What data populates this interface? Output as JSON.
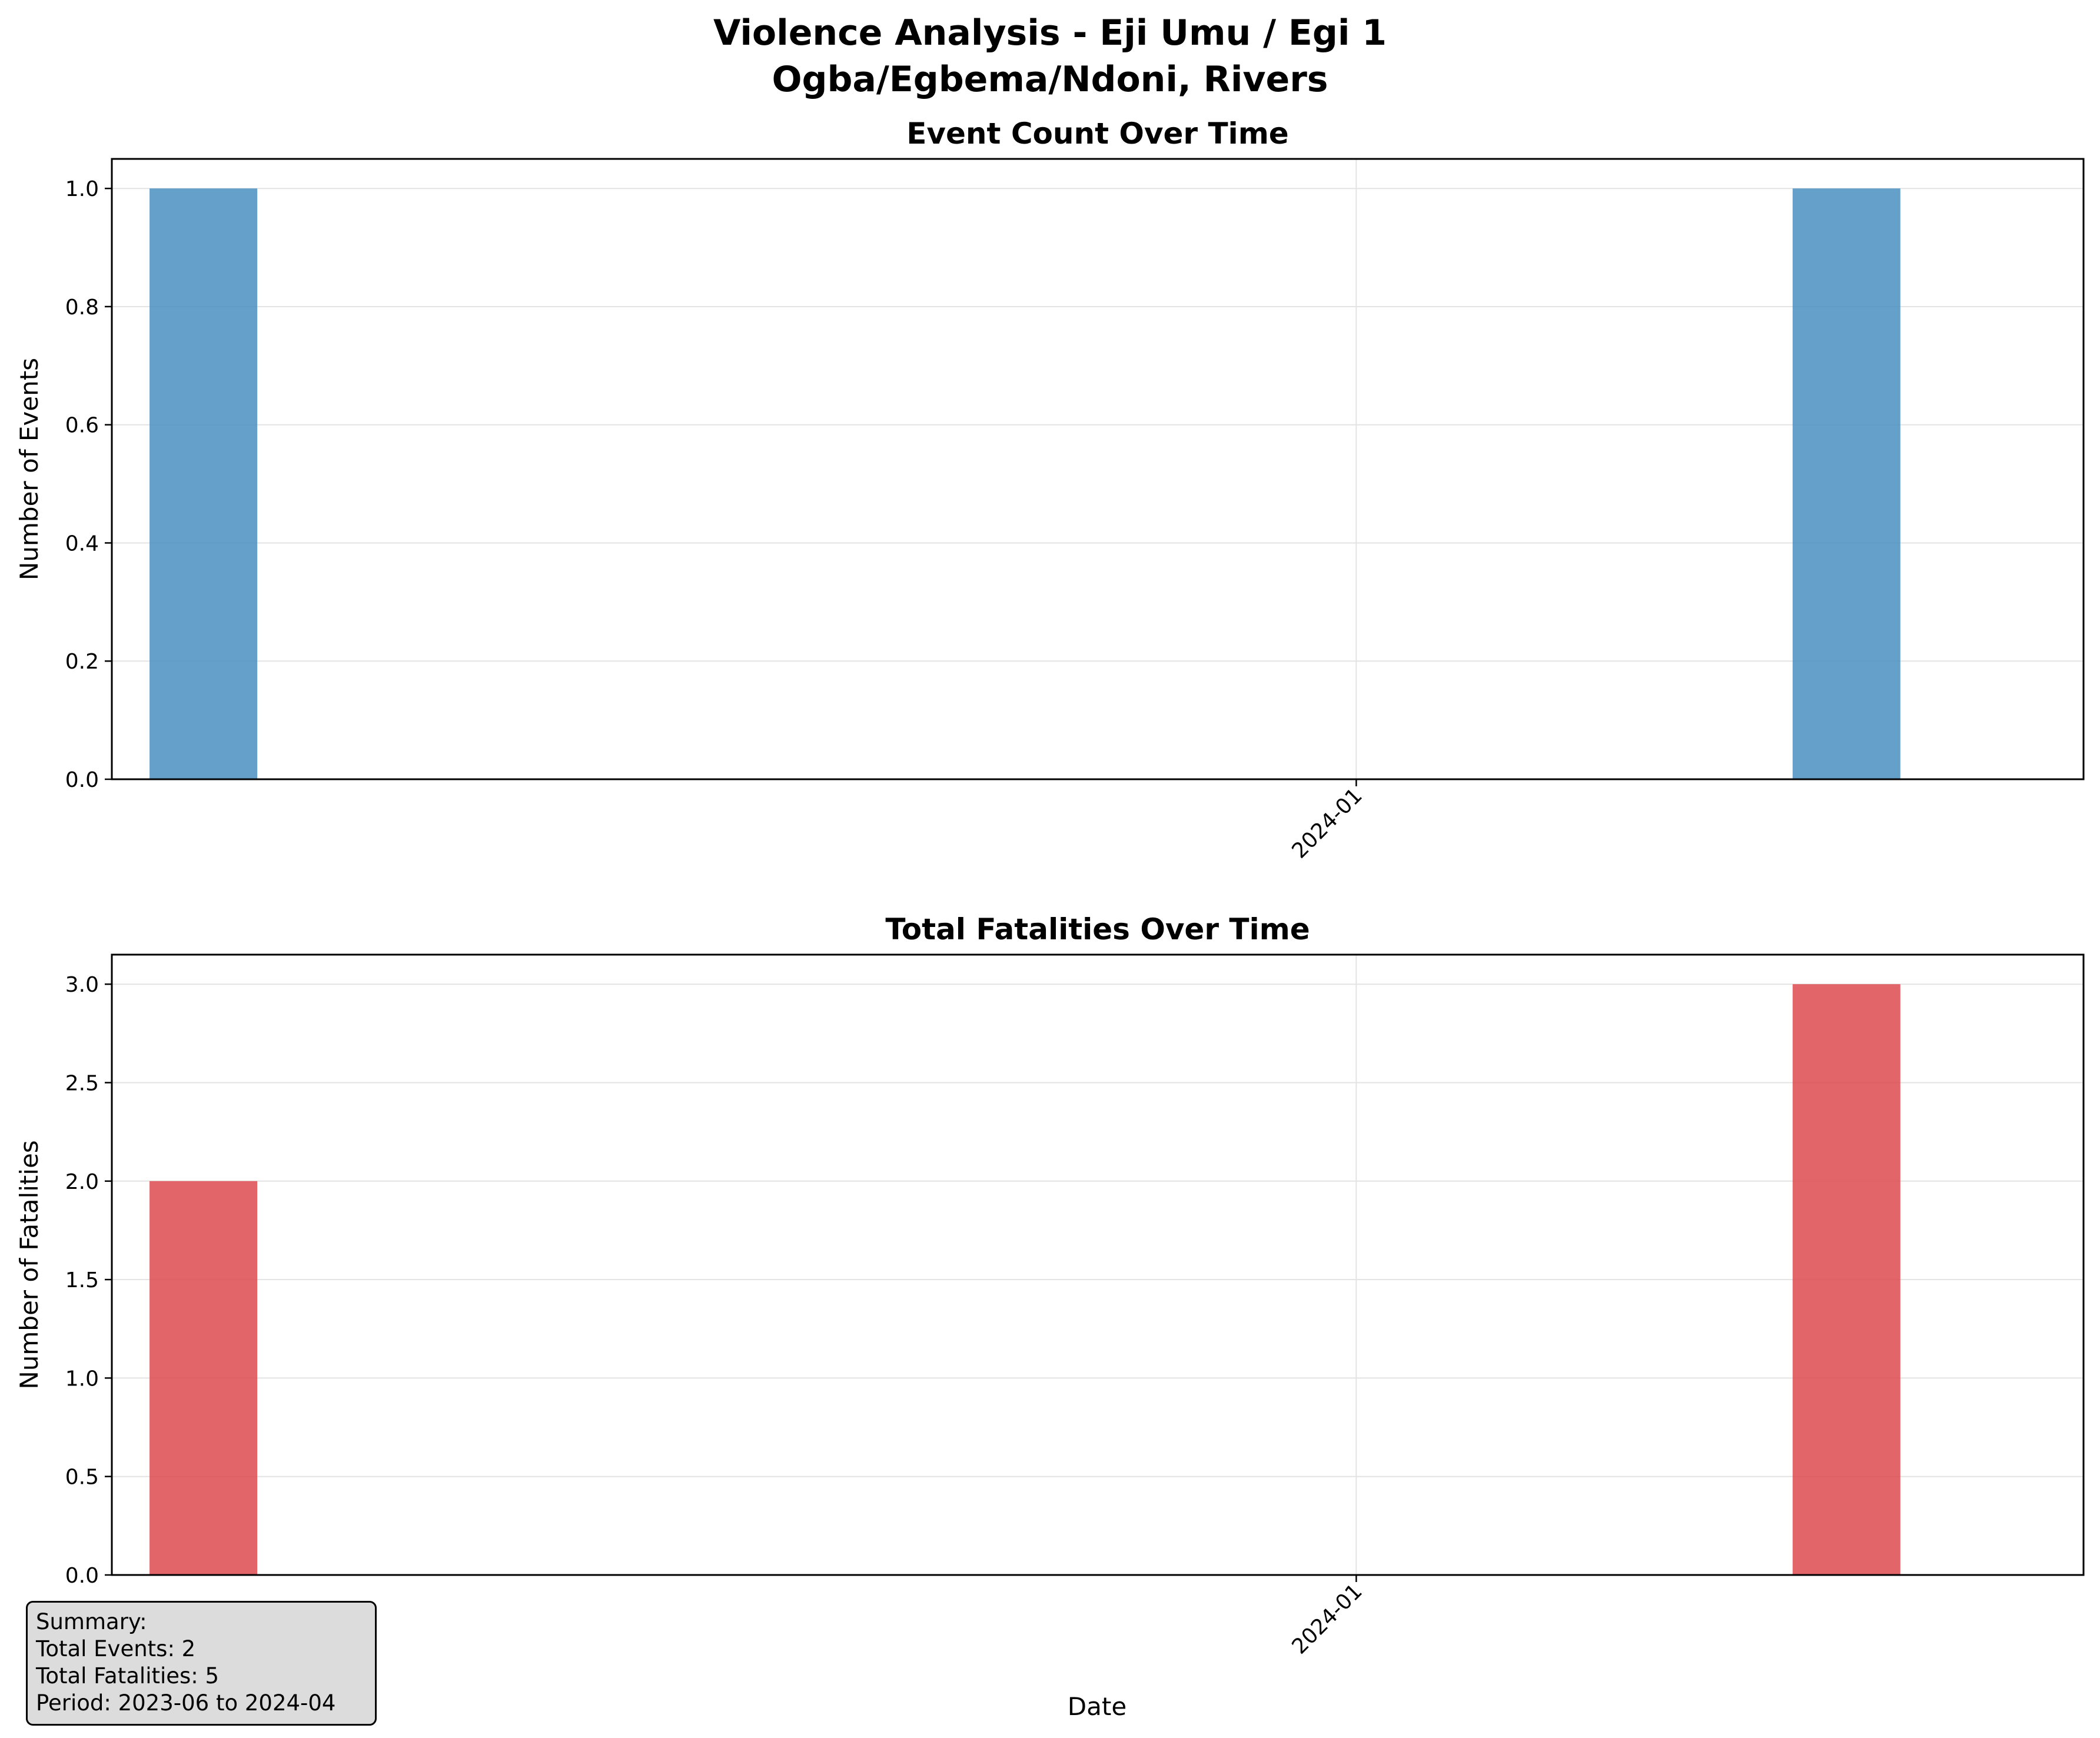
{
  "figure": {
    "title_line1": "Violence Analysis - Eji Umu / Egi 1",
    "title_line2": "Ogba/Egbema/Ndoni, Rivers",
    "xlabel": "Date"
  },
  "summary": {
    "heading": "Summary:",
    "total_events": "Total Events: 2",
    "total_fatalities": "Total Fatalities: 5",
    "period": "Period: 2023-06 to 2024-04"
  },
  "chart_data": [
    {
      "type": "bar",
      "title": "Event Count Over Time",
      "xlabel": "",
      "ylabel": "Number of Events",
      "x": [
        "2023-06",
        "2024-04"
      ],
      "values": [
        1,
        1
      ],
      "xlim": [
        "2023-05-15",
        "2024-05-15"
      ],
      "ylim": [
        0,
        1.05
      ],
      "yticks": [
        0.0,
        0.2,
        0.4,
        0.6,
        0.8,
        1.0
      ],
      "ytick_labels": [
        "0.0",
        "0.2",
        "0.4",
        "0.6",
        "0.8",
        "1.0"
      ],
      "xticks": [
        "2024-01"
      ],
      "grid": true,
      "color": "#4a8fc2"
    },
    {
      "type": "bar",
      "title": "Total Fatalities Over Time",
      "xlabel": "Date",
      "ylabel": "Number of Fatalities",
      "x": [
        "2023-06",
        "2024-04"
      ],
      "values": [
        2,
        3
      ],
      "xlim": [
        "2023-05-15",
        "2024-05-15"
      ],
      "ylim": [
        0,
        3.15
      ],
      "yticks": [
        0.0,
        0.5,
        1.0,
        1.5,
        2.0,
        2.5,
        3.0
      ],
      "ytick_labels": [
        "0.0",
        "0.5",
        "1.0",
        "1.5",
        "2.0",
        "2.5",
        "3.0"
      ],
      "xticks": [
        "2024-01"
      ],
      "grid": true,
      "color": "#dd4a4f"
    }
  ]
}
